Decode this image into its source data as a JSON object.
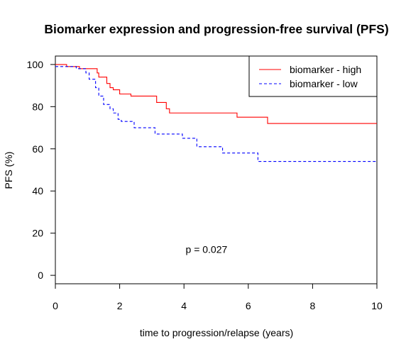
{
  "chart_data": {
    "type": "line",
    "title": "Biomarker expression and progression-free survival (PFS)",
    "xlabel": "time to progression/relapse (years)",
    "ylabel": "PFS (%)",
    "xlim": [
      0,
      10
    ],
    "ylim": [
      -4,
      104
    ],
    "x_ticks": [
      0,
      2,
      4,
      6,
      8,
      10
    ],
    "y_ticks": [
      0,
      20,
      40,
      60,
      80,
      100
    ],
    "grid": false,
    "legend_position": "top-right",
    "annotation": {
      "text": "p = 0.027",
      "x": 4.7,
      "y": 10
    },
    "series": [
      {
        "name": "biomarker - high",
        "color": "#ff0000",
        "line_style": "solid",
        "step_points": [
          [
            0,
            100
          ],
          [
            0.35,
            100
          ],
          [
            0.35,
            99
          ],
          [
            0.75,
            99
          ],
          [
            0.75,
            98
          ],
          [
            1.3,
            98
          ],
          [
            1.3,
            96
          ],
          [
            1.35,
            96
          ],
          [
            1.35,
            94
          ],
          [
            1.6,
            94
          ],
          [
            1.6,
            91
          ],
          [
            1.7,
            91
          ],
          [
            1.7,
            89
          ],
          [
            1.8,
            89
          ],
          [
            1.8,
            88
          ],
          [
            2.0,
            88
          ],
          [
            2.0,
            86
          ],
          [
            2.35,
            86
          ],
          [
            2.35,
            85
          ],
          [
            3.15,
            85
          ],
          [
            3.15,
            82
          ],
          [
            3.45,
            82
          ],
          [
            3.45,
            79
          ],
          [
            3.55,
            79
          ],
          [
            3.55,
            77
          ],
          [
            5.65,
            77
          ],
          [
            5.65,
            75
          ],
          [
            6.6,
            75
          ],
          [
            6.6,
            72
          ],
          [
            10,
            72
          ]
        ]
      },
      {
        "name": "biomarker - low",
        "color": "#0000ff",
        "line_style": "dashed",
        "step_points": [
          [
            0,
            99
          ],
          [
            0.65,
            99
          ],
          [
            0.65,
            98
          ],
          [
            0.95,
            98
          ],
          [
            0.95,
            96
          ],
          [
            1.05,
            96
          ],
          [
            1.05,
            93
          ],
          [
            1.25,
            93
          ],
          [
            1.25,
            89
          ],
          [
            1.35,
            89
          ],
          [
            1.35,
            85
          ],
          [
            1.5,
            85
          ],
          [
            1.5,
            81
          ],
          [
            1.7,
            81
          ],
          [
            1.7,
            79
          ],
          [
            1.8,
            79
          ],
          [
            1.8,
            77
          ],
          [
            1.95,
            77
          ],
          [
            1.95,
            74
          ],
          [
            2.05,
            74
          ],
          [
            2.05,
            73
          ],
          [
            2.45,
            73
          ],
          [
            2.45,
            70
          ],
          [
            3.1,
            70
          ],
          [
            3.1,
            67
          ],
          [
            3.95,
            67
          ],
          [
            3.95,
            65
          ],
          [
            4.4,
            65
          ],
          [
            4.4,
            61
          ],
          [
            5.2,
            61
          ],
          [
            5.2,
            58
          ],
          [
            6.3,
            58
          ],
          [
            6.3,
            54
          ],
          [
            10,
            54
          ]
        ]
      }
    ]
  }
}
